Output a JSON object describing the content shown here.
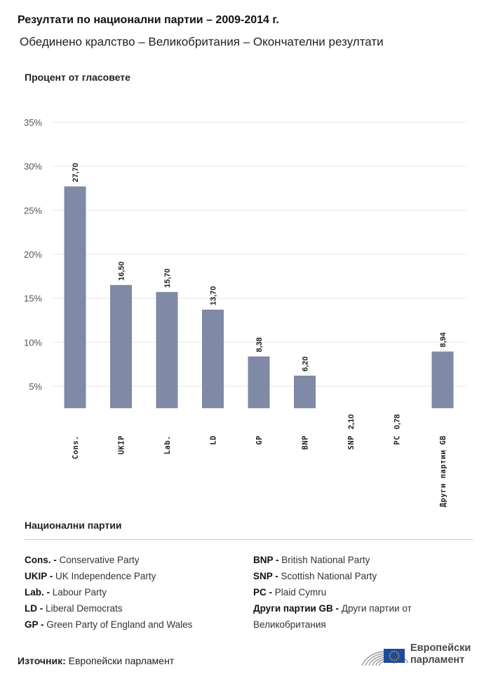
{
  "header": {
    "title": "Резултати по национални партии – 2009-2014 г.",
    "subtitle": "Обединено кралство – Великобритания – Окончателни резултати"
  },
  "chart_data": {
    "type": "bar",
    "ylabel": "Процент от гласовете",
    "ylim": [
      2.5,
      35
    ],
    "yticks": [
      5,
      10,
      15,
      20,
      25,
      30,
      35
    ],
    "ytick_labels": [
      "5%",
      "10%",
      "15%",
      "20%",
      "25%",
      "30%",
      "35%"
    ],
    "categories": [
      "Cons.",
      "UKIP",
      "Lab.",
      "LD",
      "GP",
      "BNP",
      "SNP",
      "PC",
      "Други партии GB"
    ],
    "values": [
      27.7,
      16.5,
      15.7,
      13.7,
      8.38,
      6.2,
      2.1,
      0.78,
      8.94
    ],
    "value_labels": [
      "27,70",
      "16,50",
      "15,70",
      "13,70",
      "8,38",
      "6,20",
      "2,10",
      "0,78",
      "8,94"
    ],
    "bar_color": "#8089a5",
    "grid": true,
    "grid_color": "#e6e6e6"
  },
  "legend": {
    "title": "Национални партии",
    "left": [
      {
        "abbr": "Cons. -",
        "name": "Conservative Party"
      },
      {
        "abbr": "UKIP -",
        "name": "UK Independence Party"
      },
      {
        "abbr": "Lab. -",
        "name": "Labour Party"
      },
      {
        "abbr": "LD -",
        "name": "Liberal Democrats"
      },
      {
        "abbr": "GP -",
        "name": "Green Party of England and Wales"
      }
    ],
    "right": [
      {
        "abbr": "BNP -",
        "name": "British National Party"
      },
      {
        "abbr": "SNP -",
        "name": "Scottish National Party"
      },
      {
        "abbr": "PC -",
        "name": "Plaid Cymru"
      },
      {
        "abbr": "Други партии GB -",
        "name": "Други партии от Великобритания"
      }
    ]
  },
  "footer": {
    "source_label": "Източник:",
    "source_value": "Европейски парламент",
    "logo_line1": "Европейски",
    "logo_line2": "парламент",
    "logo_flag_color": "#1f4b9c",
    "logo_star_color": "#f5c400"
  }
}
